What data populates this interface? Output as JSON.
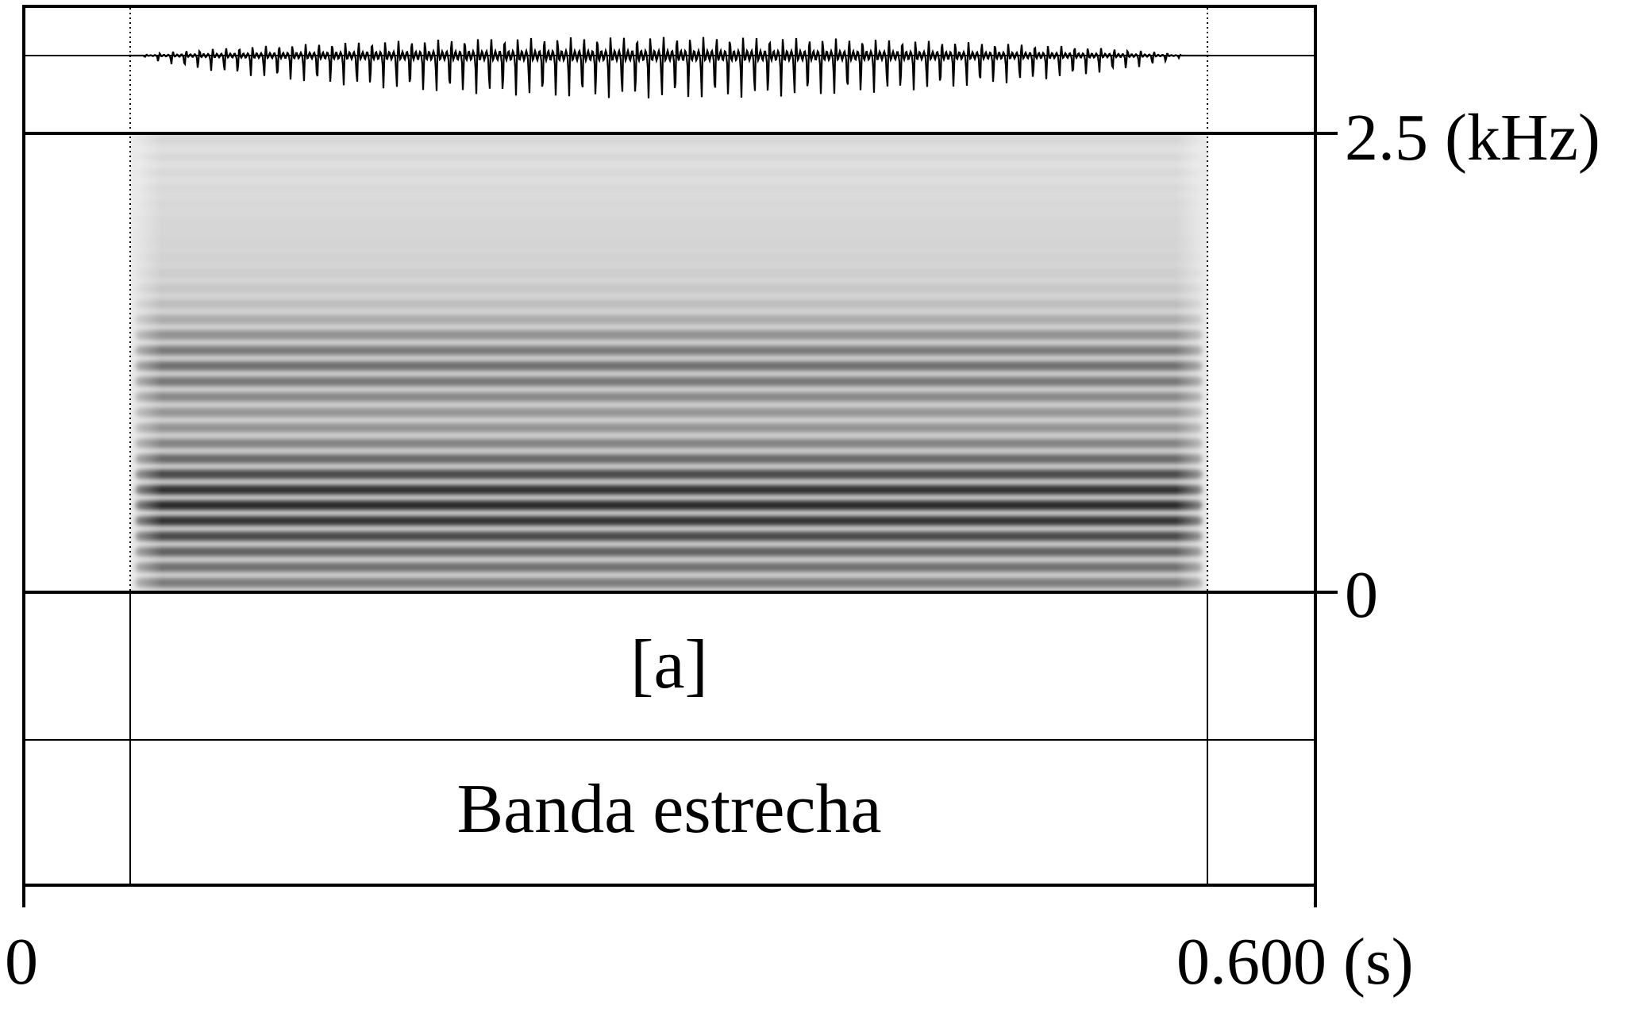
{
  "frequency_axis": {
    "max_label": "2.5 (kHz)",
    "min_label": "0"
  },
  "time_axis": {
    "start_label": "0",
    "end_label": "0.600 (s)"
  },
  "tiers": {
    "segment": "[a]",
    "description": "Banda estrecha"
  },
  "colors": {
    "ink": "#000000",
    "background": "#ffffff"
  }
}
